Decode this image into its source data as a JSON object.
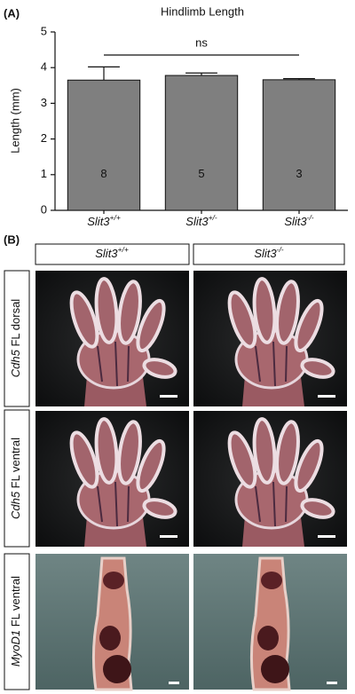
{
  "chart_data": {
    "type": "bar",
    "panel_label": "(A)",
    "title": "Hindlimb Length",
    "y_label": "Length (mm)",
    "categories": [
      "Slit3+/+",
      "Slit3+/-",
      "Slit3-/-"
    ],
    "values": [
      3.65,
      3.78,
      3.66
    ],
    "errors": [
      0.37,
      0.07,
      0.03
    ],
    "n_labels": [
      8,
      5,
      3
    ],
    "color": "#7f7f7f",
    "ylim": [
      0,
      5
    ],
    "yticks": [
      0,
      1,
      2,
      3,
      4,
      5
    ],
    "significance": "ns"
  },
  "panel_b": {
    "panel_label": "(B)",
    "columns": [
      "Slit3+/+",
      "Slit3-/-"
    ],
    "rows": [
      {
        "gene": "Cdh5",
        "view": "FL dorsal"
      },
      {
        "gene": "Cdh5",
        "view": "FL ventral"
      },
      {
        "gene": "MyoD1",
        "view": "FL ventral"
      }
    ]
  }
}
